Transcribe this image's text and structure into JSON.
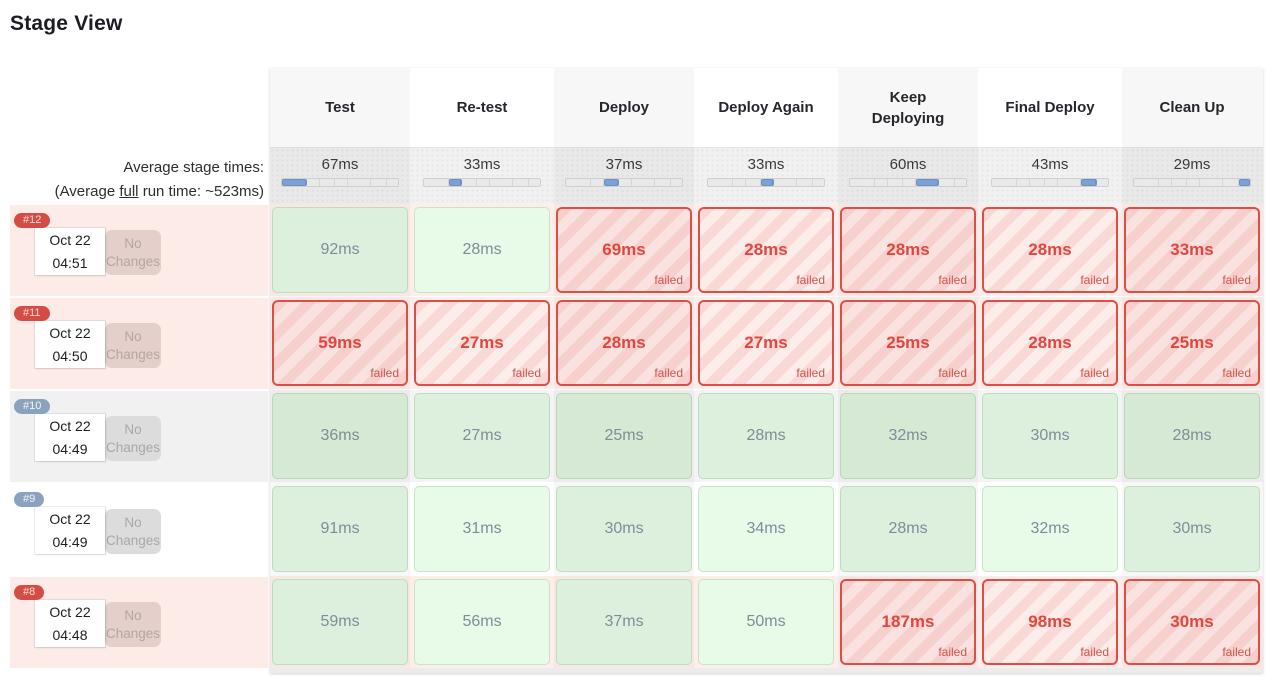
{
  "title": "Stage View",
  "average_header": {
    "line1": "Average stage times:",
    "line2_prefix": "(Average ",
    "line2_underline": "full",
    "line2_suffix": " run time: ~523ms)"
  },
  "stages": [
    "Test",
    "Re-test",
    "Deploy",
    "Deploy Again",
    "Keep Deploying",
    "Final Deploy",
    "Clean Up"
  ],
  "average_stage_times": [
    {
      "label": "67ms",
      "ms": 67
    },
    {
      "label": "33ms",
      "ms": 33
    },
    {
      "label": "37ms",
      "ms": 37
    },
    {
      "label": "33ms",
      "ms": 33
    },
    {
      "label": "60ms",
      "ms": 60
    },
    {
      "label": "43ms",
      "ms": 43
    },
    {
      "label": "29ms",
      "ms": 29
    }
  ],
  "failed_label": "failed",
  "builds": [
    {
      "id": "#12",
      "date": "Oct 22",
      "time": "04:51",
      "changes": "No Changes",
      "status": "failed",
      "row_tone": "light",
      "stages": [
        {
          "time": "92ms",
          "status": "success"
        },
        {
          "time": "28ms",
          "status": "success"
        },
        {
          "time": "69ms",
          "status": "failed"
        },
        {
          "time": "28ms",
          "status": "failed"
        },
        {
          "time": "28ms",
          "status": "failed"
        },
        {
          "time": "28ms",
          "status": "failed"
        },
        {
          "time": "33ms",
          "status": "failed"
        }
      ]
    },
    {
      "id": "#11",
      "date": "Oct 22",
      "time": "04:50",
      "changes": "No Changes",
      "status": "failed",
      "row_tone": "light",
      "stages": [
        {
          "time": "59ms",
          "status": "failed"
        },
        {
          "time": "27ms",
          "status": "failed"
        },
        {
          "time": "28ms",
          "status": "failed"
        },
        {
          "time": "27ms",
          "status": "failed"
        },
        {
          "time": "25ms",
          "status": "failed"
        },
        {
          "time": "28ms",
          "status": "failed"
        },
        {
          "time": "25ms",
          "status": "failed"
        }
      ]
    },
    {
      "id": "#10",
      "date": "Oct 22",
      "time": "04:49",
      "changes": "No Changes",
      "status": "success",
      "row_tone": "dark",
      "stages": [
        {
          "time": "36ms",
          "status": "success"
        },
        {
          "time": "27ms",
          "status": "success"
        },
        {
          "time": "25ms",
          "status": "success"
        },
        {
          "time": "28ms",
          "status": "success"
        },
        {
          "time": "32ms",
          "status": "success"
        },
        {
          "time": "30ms",
          "status": "success"
        },
        {
          "time": "28ms",
          "status": "success"
        }
      ]
    },
    {
      "id": "#9",
      "date": "Oct 22",
      "time": "04:49",
      "changes": "No Changes",
      "status": "success",
      "row_tone": "light",
      "stages": [
        {
          "time": "91ms",
          "status": "success"
        },
        {
          "time": "31ms",
          "status": "success"
        },
        {
          "time": "30ms",
          "status": "success"
        },
        {
          "time": "34ms",
          "status": "success"
        },
        {
          "time": "28ms",
          "status": "success"
        },
        {
          "time": "32ms",
          "status": "success"
        },
        {
          "time": "30ms",
          "status": "success"
        }
      ]
    },
    {
      "id": "#8",
      "date": "Oct 22",
      "time": "04:48",
      "changes": "No Changes",
      "status": "failed",
      "row_tone": "light",
      "stages": [
        {
          "time": "59ms",
          "status": "success"
        },
        {
          "time": "56ms",
          "status": "success"
        },
        {
          "time": "37ms",
          "status": "success"
        },
        {
          "time": "50ms",
          "status": "success"
        },
        {
          "time": "187ms",
          "status": "failed"
        },
        {
          "time": "98ms",
          "status": "failed"
        },
        {
          "time": "30ms",
          "status": "failed"
        }
      ]
    }
  ],
  "colors": {
    "failed_accent": "#dc4f47",
    "failed_text": "#e0473f",
    "success_text": "#828b99",
    "failed_row_bg": "#fcebe7",
    "badge_failed_bg": "#d44c44",
    "badge_success_bg": "#8ba2be",
    "avg_bar_fill": "#7ba2d3",
    "shaded_column_bg": "#f7f7f7"
  }
}
